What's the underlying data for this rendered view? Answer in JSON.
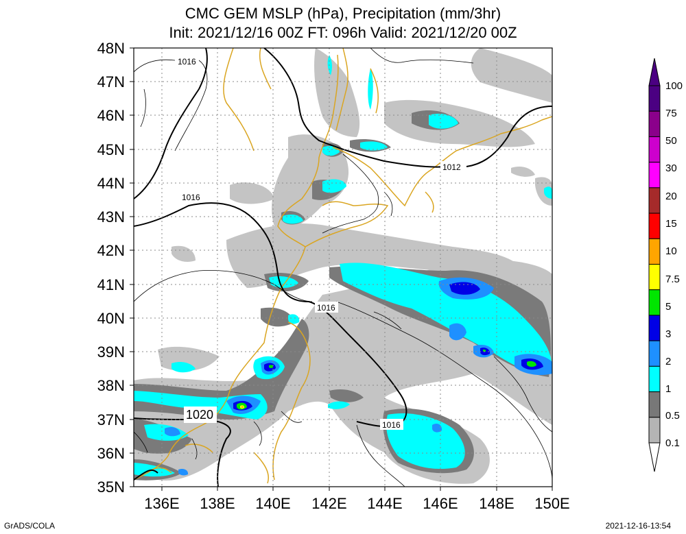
{
  "title": {
    "line1": "CMC GEM MSLP (hPa), Precipitation (mm/3hr)",
    "line2": "Init: 2021/12/16 00Z  FT: 096h  Valid: 2021/12/20 00Z"
  },
  "map": {
    "lon_range": [
      135,
      150
    ],
    "lat_range": [
      35,
      48
    ],
    "lon_ticks": [
      "136E",
      "138E",
      "140E",
      "142E",
      "144E",
      "146E",
      "148E",
      "150E"
    ],
    "lat_ticks": [
      "35N",
      "36N",
      "37N",
      "38N",
      "39N",
      "40N",
      "41N",
      "42N",
      "43N",
      "44N",
      "45N",
      "46N",
      "47N",
      "48N"
    ],
    "isobar_labels": [
      "1016",
      "1016",
      "1012",
      "1016",
      "1016",
      "1020"
    ]
  },
  "legend": {
    "levels": [
      "0.1",
      "0.5",
      "1",
      "2",
      "3",
      "5",
      "7.5",
      "10",
      "15",
      "20",
      "30",
      "50",
      "75",
      "100"
    ],
    "colors": [
      "#b4b4b4",
      "#787878",
      "#00ffff",
      "#1e90ff",
      "#0000e6",
      "#00e600",
      "#ffff00",
      "#ffa500",
      "#ff0000",
      "#a52a2a",
      "#ff00ff",
      "#cd00cd",
      "#8b008b",
      "#4b0082"
    ]
  },
  "footer": {
    "left": "GrADS/COLA",
    "right": "2021-12-16-13:54"
  }
}
